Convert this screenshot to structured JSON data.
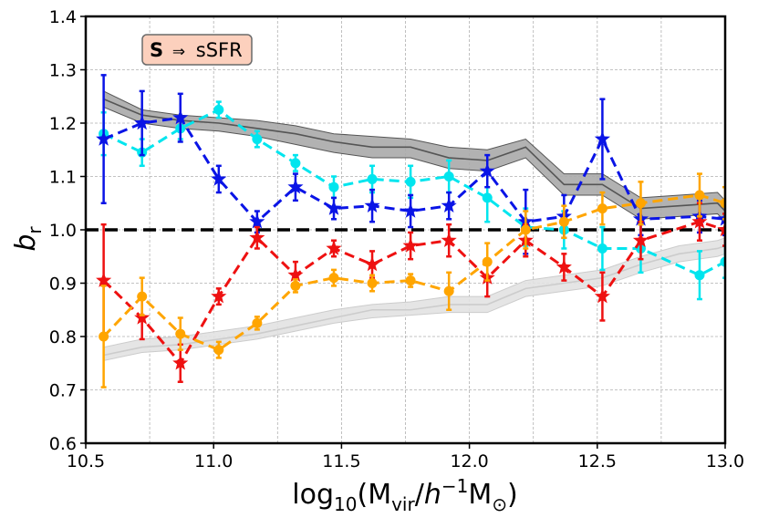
{
  "chart_data": {
    "type": "line",
    "title": "",
    "annotation": {
      "bold": "S",
      "arrow": "⇒",
      "text": "sSFR"
    },
    "xlabel": {
      "prefix": "log",
      "sub1": "10",
      "open": "(M",
      "sub2": "vir",
      "slash": "/",
      "h": "h",
      "sup": "−1",
      "m": "M",
      "sun": "⊙",
      "close": ")"
    },
    "ylabel": {
      "main": "b",
      "sub": "r"
    },
    "xlim": [
      10.5,
      13.0
    ],
    "ylim": [
      0.6,
      1.4
    ],
    "xticks": [
      "10.5",
      "11.0",
      "11.5",
      "12.0",
      "12.5",
      "13.0"
    ],
    "yticks": [
      "0.6",
      "0.7",
      "0.8",
      "0.9",
      "1.0",
      "1.1",
      "1.2",
      "1.3",
      "1.4"
    ],
    "grid": true,
    "reference_line": {
      "y": 1.0,
      "color": "#000000"
    },
    "bands": [
      {
        "name": "dark-band",
        "color": "#555555",
        "fill": "#aaaaaa",
        "x": [
          10.57,
          10.72,
          10.87,
          11.02,
          11.17,
          11.32,
          11.47,
          11.62,
          11.77,
          11.92,
          12.07,
          12.22,
          12.37,
          12.52,
          12.67,
          12.82,
          12.97,
          13.0
        ],
        "y": [
          1.245,
          1.215,
          1.205,
          1.2,
          1.19,
          1.18,
          1.165,
          1.155,
          1.155,
          1.135,
          1.13,
          1.155,
          1.085,
          1.085,
          1.04,
          1.045,
          1.05,
          1.035
        ],
        "lo": [
          1.23,
          1.2,
          1.19,
          1.185,
          1.175,
          1.16,
          1.145,
          1.135,
          1.135,
          1.115,
          1.11,
          1.135,
          1.065,
          1.065,
          1.02,
          1.025,
          1.03,
          1.015
        ],
        "hi": [
          1.26,
          1.225,
          1.215,
          1.21,
          1.205,
          1.195,
          1.18,
          1.175,
          1.17,
          1.155,
          1.15,
          1.17,
          1.105,
          1.105,
          1.06,
          1.065,
          1.07,
          1.055
        ]
      },
      {
        "name": "light-band",
        "color": "#cccccc",
        "fill": "#e2e2e2",
        "x": [
          10.57,
          10.72,
          10.87,
          11.02,
          11.17,
          11.32,
          11.47,
          11.62,
          11.77,
          11.92,
          12.07,
          12.22,
          12.37,
          12.52,
          12.67,
          12.82,
          12.97,
          13.0
        ],
        "y": [
          0.765,
          0.78,
          0.785,
          0.795,
          0.805,
          0.82,
          0.835,
          0.85,
          0.85,
          0.86,
          0.86,
          0.89,
          0.9,
          0.91,
          0.935,
          0.955,
          0.965,
          0.97
        ],
        "lo": [
          0.755,
          0.77,
          0.775,
          0.785,
          0.795,
          0.81,
          0.825,
          0.835,
          0.84,
          0.845,
          0.845,
          0.875,
          0.885,
          0.895,
          0.92,
          0.94,
          0.95,
          0.955
        ],
        "hi": [
          0.78,
          0.795,
          0.8,
          0.81,
          0.82,
          0.835,
          0.85,
          0.86,
          0.865,
          0.875,
          0.875,
          0.905,
          0.915,
          0.925,
          0.95,
          0.97,
          0.98,
          0.985
        ]
      }
    ],
    "series": [
      {
        "name": "cyan",
        "color": "#00e5ee",
        "marker": "circle",
        "x": [
          10.57,
          10.72,
          10.87,
          11.02,
          11.17,
          11.32,
          11.47,
          11.62,
          11.77,
          11.92,
          12.07,
          12.22,
          12.37,
          12.52,
          12.67,
          12.9,
          13.0
        ],
        "y": [
          1.18,
          1.145,
          1.19,
          1.225,
          1.17,
          1.125,
          1.08,
          1.095,
          1.09,
          1.1,
          1.06,
          1.005,
          1.0,
          0.965,
          0.965,
          0.915,
          0.94
        ],
        "err": [
          0.04,
          0.025,
          0.02,
          0.015,
          0.015,
          0.015,
          0.02,
          0.025,
          0.03,
          0.03,
          0.045,
          0.035,
          0.035,
          0.04,
          0.045,
          0.045,
          0.03
        ]
      },
      {
        "name": "blue",
        "color": "#0a14e6",
        "marker": "star",
        "x": [
          10.57,
          10.72,
          10.87,
          11.02,
          11.17,
          11.32,
          11.47,
          11.62,
          11.77,
          11.92,
          12.07,
          12.22,
          12.37,
          12.52,
          12.67,
          12.9,
          13.0
        ],
        "y": [
          1.17,
          1.2,
          1.21,
          1.095,
          1.015,
          1.08,
          1.04,
          1.045,
          1.035,
          1.045,
          1.11,
          1.015,
          1.025,
          1.17,
          1.02,
          1.025,
          1.02
        ],
        "err": [
          0.12,
          0.06,
          0.045,
          0.025,
          0.02,
          0.025,
          0.02,
          0.03,
          0.03,
          0.025,
          0.03,
          0.06,
          0.04,
          0.075,
          0.03,
          0.03,
          0.03
        ]
      },
      {
        "name": "red",
        "color": "#ee1111",
        "marker": "star",
        "x": [
          10.57,
          10.72,
          10.87,
          11.02,
          11.17,
          11.32,
          11.47,
          11.62,
          11.77,
          11.92,
          12.07,
          12.22,
          12.37,
          12.52,
          12.67,
          12.9,
          13.0
        ],
        "y": [
          0.905,
          0.835,
          0.75,
          0.875,
          0.985,
          0.915,
          0.965,
          0.935,
          0.97,
          0.98,
          0.91,
          0.98,
          0.93,
          0.875,
          0.98,
          1.015,
          1.0
        ],
        "err": [
          0.105,
          0.04,
          0.035,
          0.015,
          0.02,
          0.025,
          0.015,
          0.025,
          0.025,
          0.03,
          0.035,
          0.03,
          0.025,
          0.045,
          0.035,
          0.035,
          0.03
        ]
      },
      {
        "name": "orange",
        "color": "#ffa500",
        "marker": "circle",
        "x": [
          10.57,
          10.72,
          10.87,
          11.02,
          11.17,
          11.32,
          11.47,
          11.62,
          11.77,
          11.92,
          12.07,
          12.22,
          12.37,
          12.52,
          12.67,
          12.9,
          13.0
        ],
        "y": [
          0.8,
          0.875,
          0.805,
          0.775,
          0.825,
          0.895,
          0.91,
          0.9,
          0.905,
          0.885,
          0.94,
          1.0,
          1.015,
          1.04,
          1.05,
          1.065,
          1.05
        ],
        "err": [
          0.095,
          0.035,
          0.03,
          0.015,
          0.012,
          0.012,
          0.015,
          0.015,
          0.012,
          0.035,
          0.035,
          0.035,
          0.03,
          0.03,
          0.04,
          0.04,
          0.03
        ]
      }
    ]
  }
}
